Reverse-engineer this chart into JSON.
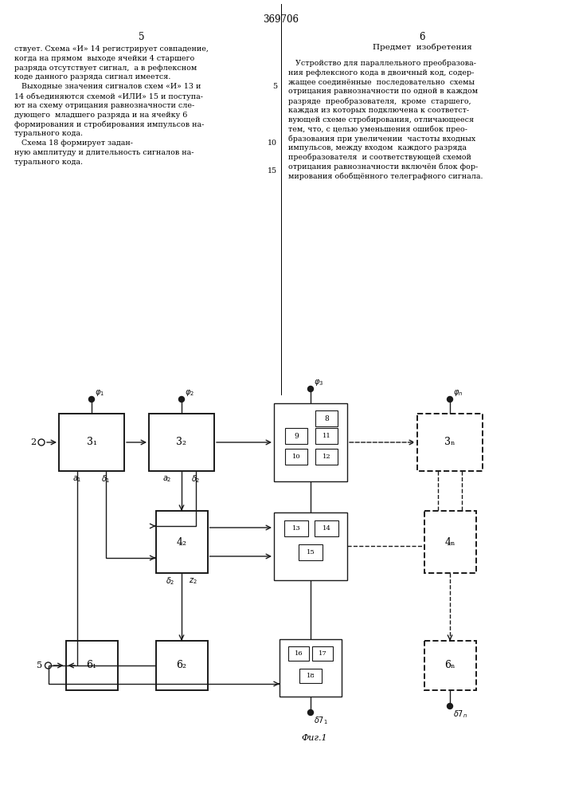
{
  "title": "369706",
  "page_left": "5",
  "page_right": "6",
  "text_left_lines": [
    "ствует. Схема «И» 14 регистрирует совпадение,",
    "когда на прямом  выходе ячейки 4 старшего",
    "разряда отсутствует сигнал,  а в рефлексном",
    "коде данного разряда сигнал имеется.",
    "   Выходные значения сигналов схем «И» 13 и",
    "14 объединяются схемой «ИЛИ» 15 и поступа-",
    "ют на схему отрицания равнозначности сле-",
    "дующего  младшего разряда и на ячейку 6",
    "формирования и стробирования импульсов на-",
    "турального кода.",
    "   Схема 18 формирует задан-",
    "ную амплитуду и длительность сигналов на-",
    "турального кода."
  ],
  "text_right_title": "Предмет  изобретения",
  "text_right_lines": [
    "   Устройство для параллельного преобразова-",
    "ния рефлексного кода в двоичный код, содер-",
    "жащее соединённые  последовательно  схемы",
    "отрицания равнозначности по одной в каждом",
    "разряде  преобразователя,  кроме  старшего,",
    "каждая из которых подключена к соответст-",
    "вующей схеме стробирования, отличающееся",
    "тем, что, с целью уменьшения ошибок прео-",
    "бразования при увеличении  частоты входных",
    "импульсов, между входом  каждого разряда",
    "преобразователя  и соответствующей схемой",
    "отрицания равнозначности включён блок фор-",
    "мирования обобщённого телеграфного сигнала."
  ],
  "fig_label": "Фиг.1",
  "bg": "#ffffff",
  "lc": "#1a1a1a"
}
